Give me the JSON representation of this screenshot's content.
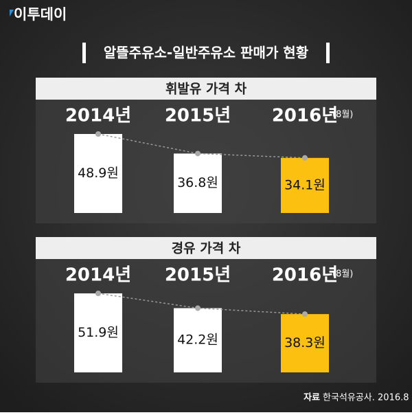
{
  "header": {
    "logo": "이투데이",
    "title": "알뜰주유소-일반주유소 판매가 현황"
  },
  "chart_data": [
    {
      "type": "bar",
      "title": "휘발유 가격 차",
      "categories": [
        "2014년",
        "2015년",
        "2016년"
      ],
      "category_notes": [
        null,
        null,
        "(8월)"
      ],
      "values": [
        48.9,
        36.8,
        34.1
      ],
      "value_labels": [
        "48.9원",
        "36.8원",
        "34.1원"
      ],
      "colors": [
        "#ffffff",
        "#ffffff",
        "#fcc010"
      ]
    },
    {
      "type": "bar",
      "title": "경유 가격 차",
      "categories": [
        "2014년",
        "2015년",
        "2016년"
      ],
      "category_notes": [
        null,
        null,
        "(8월)"
      ],
      "values": [
        51.9,
        42.2,
        38.3
      ],
      "value_labels": [
        "51.9원",
        "42.2원",
        "38.3원"
      ],
      "colors": [
        "#ffffff",
        "#ffffff",
        "#fcc010"
      ]
    }
  ],
  "source": {
    "label": "자료",
    "text": "한국석유공사. 2016.8"
  }
}
